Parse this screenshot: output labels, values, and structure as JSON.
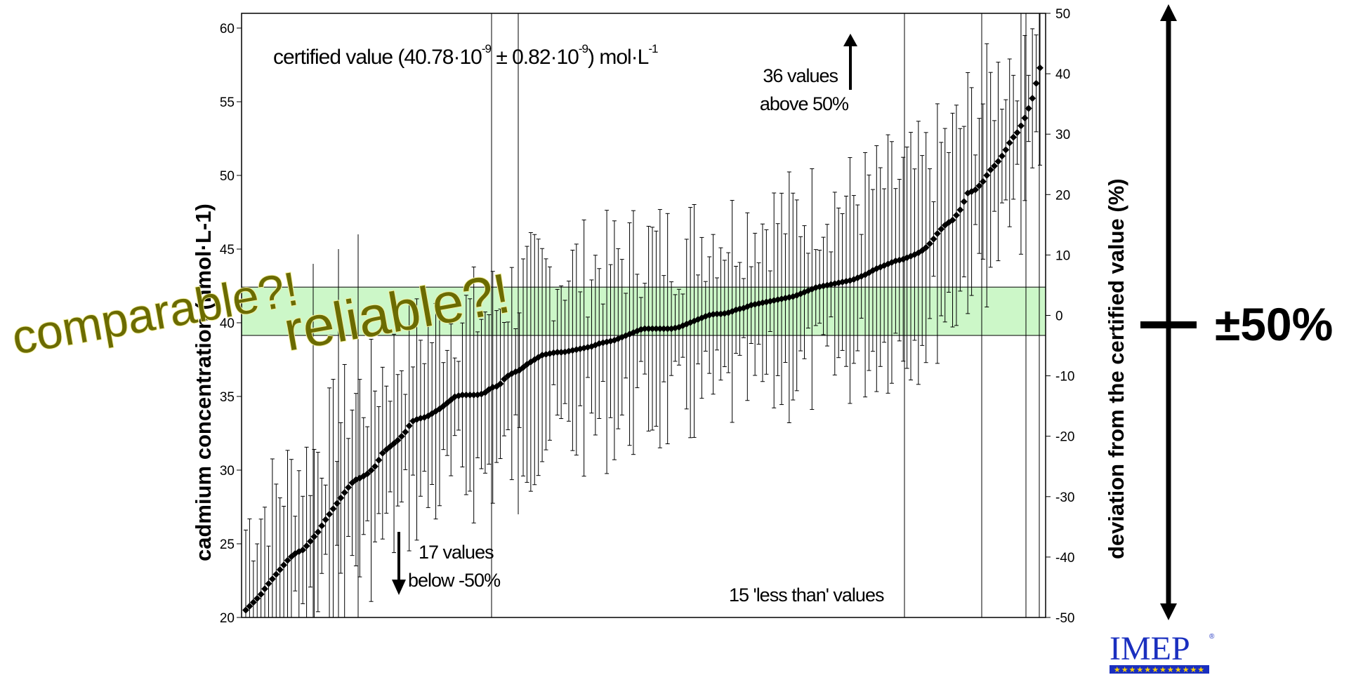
{
  "chart_data": {
    "type": "scatter",
    "title": "",
    "xlabel": "",
    "ylabel": "cadmium concentration (nmol·L-1)",
    "ylabel_sup": "-1",
    "ylabel_right": "deviation from the certified value (%)",
    "ylim": [
      20,
      61
    ],
    "ylim_right": [
      -50,
      50
    ],
    "y_ticks": [
      "20",
      "25",
      "30",
      "35",
      "40",
      "45",
      "50",
      "55",
      "60"
    ],
    "y_ticks_right": [
      "-50",
      "-40",
      "-30",
      "-20",
      "-10",
      "0",
      "10",
      "20",
      "30",
      "40",
      "50"
    ],
    "certified_value": 40.78,
    "certified_uncertainty": 0.82,
    "certified_label": {
      "main": "certified value (40.78·10",
      "sup1": "-9",
      "mid": " ± 0.82·10",
      "sup2": "-9",
      "unit": ") mol·L",
      "sup3": "-1"
    },
    "band_color": "#ccf7c8",
    "series": [
      {
        "n_points": 210,
        "values_sorted": [
          20.5,
          21.0,
          21.5,
          22.2,
          22.8,
          23.4,
          24.0,
          24.4,
          24.6,
          25.2,
          25.8,
          26.6,
          27.3,
          28.0,
          28.7,
          29.3,
          29.5,
          29.8,
          30.3,
          31.2,
          31.6,
          32.0,
          32.5,
          33.3,
          33.5,
          33.6,
          33.9,
          34.2,
          34.6,
          35.0,
          35.1,
          35.1,
          35.1,
          35.2,
          35.6,
          35.7,
          36.3,
          36.6,
          36.8,
          37.2,
          37.5,
          37.8,
          37.9,
          38.0,
          38.0,
          38.1,
          38.2,
          38.3,
          38.4,
          38.6,
          38.7,
          38.8,
          39.0,
          39.2,
          39.4,
          39.6,
          39.6,
          39.6,
          39.6,
          39.6,
          39.7,
          39.9,
          40.1,
          40.3,
          40.5,
          40.6,
          40.6,
          40.7,
          40.9,
          41.0,
          41.2,
          41.3,
          41.4,
          41.5,
          41.6,
          41.7,
          41.8,
          42.0,
          42.2,
          42.4,
          42.5,
          42.6,
          42.7,
          42.8,
          42.9,
          43.1,
          43.3,
          43.6,
          43.8,
          44.0,
          44.2,
          44.3,
          44.5,
          44.7,
          45.0,
          45.5,
          46.2,
          46.7,
          47.0,
          47.7,
          48.8,
          49.0,
          49.5,
          50.3,
          50.8,
          51.5,
          52.4,
          53.0,
          54.0,
          55.3,
          57.3
        ],
        "note": "sorted laboratory results, each with an uncertainty bar"
      }
    ],
    "annotations": {
      "above_count": "36 values",
      "above_text": "above 50%",
      "below_count": "17 values",
      "below_text": "below -50%",
      "less_than": "15 'less than' values"
    }
  },
  "overlay": {
    "word1": "comparable?!",
    "word2": "reliable?!",
    "range_label": "±50%"
  },
  "logo": {
    "text": "IMEP",
    "color": "#1a2fbf"
  }
}
